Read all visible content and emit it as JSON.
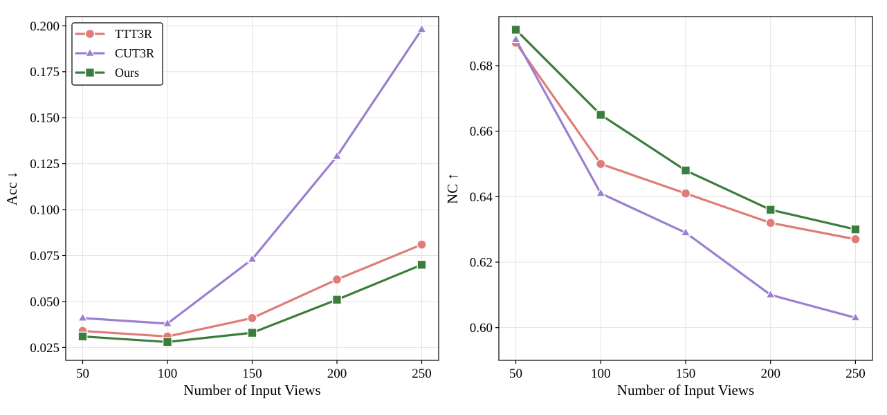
{
  "chart_data": [
    {
      "type": "line",
      "x": [
        50,
        100,
        150,
        200,
        250
      ],
      "xticks": [
        "50",
        "100",
        "150",
        "200",
        "250"
      ],
      "xlabel": "Number of Input Views",
      "ylabel": "Acc ↓",
      "ylim": [
        0.018,
        0.205
      ],
      "yticks": [
        "0.025",
        "0.050",
        "0.075",
        "0.100",
        "0.125",
        "0.150",
        "0.175",
        "0.200"
      ],
      "grid": true,
      "legend": "top-left",
      "series": [
        {
          "name": "TTT3R",
          "color": "#e07b78",
          "marker": "circle",
          "values": [
            0.034,
            0.031,
            0.041,
            0.062,
            0.081
          ]
        },
        {
          "name": "CUT3R",
          "color": "#9b7fd0",
          "marker": "triangle",
          "values": [
            0.041,
            0.038,
            0.073,
            0.129,
            0.198
          ]
        },
        {
          "name": "Ours",
          "color": "#3a7d3c",
          "marker": "square",
          "values": [
            0.031,
            0.028,
            0.033,
            0.051,
            0.07
          ]
        }
      ]
    },
    {
      "type": "line",
      "x": [
        50,
        100,
        150,
        200,
        250
      ],
      "xticks": [
        "50",
        "100",
        "150",
        "200",
        "250"
      ],
      "xlabel": "Number of Input Views",
      "ylabel": "NC ↑",
      "ylim": [
        0.59,
        0.695
      ],
      "yticks": [
        "0.60",
        "0.62",
        "0.64",
        "0.66",
        "0.68"
      ],
      "grid": true,
      "legend": "none",
      "series": [
        {
          "name": "TTT3R",
          "color": "#e07b78",
          "marker": "circle",
          "values": [
            0.687,
            0.65,
            0.641,
            0.632,
            0.627
          ]
        },
        {
          "name": "CUT3R",
          "color": "#9b7fd0",
          "marker": "triangle",
          "values": [
            0.688,
            0.641,
            0.629,
            0.61,
            0.603
          ]
        },
        {
          "name": "Ours",
          "color": "#3a7d3c",
          "marker": "square",
          "values": [
            0.691,
            0.665,
            0.648,
            0.636,
            0.63
          ]
        }
      ]
    }
  ]
}
